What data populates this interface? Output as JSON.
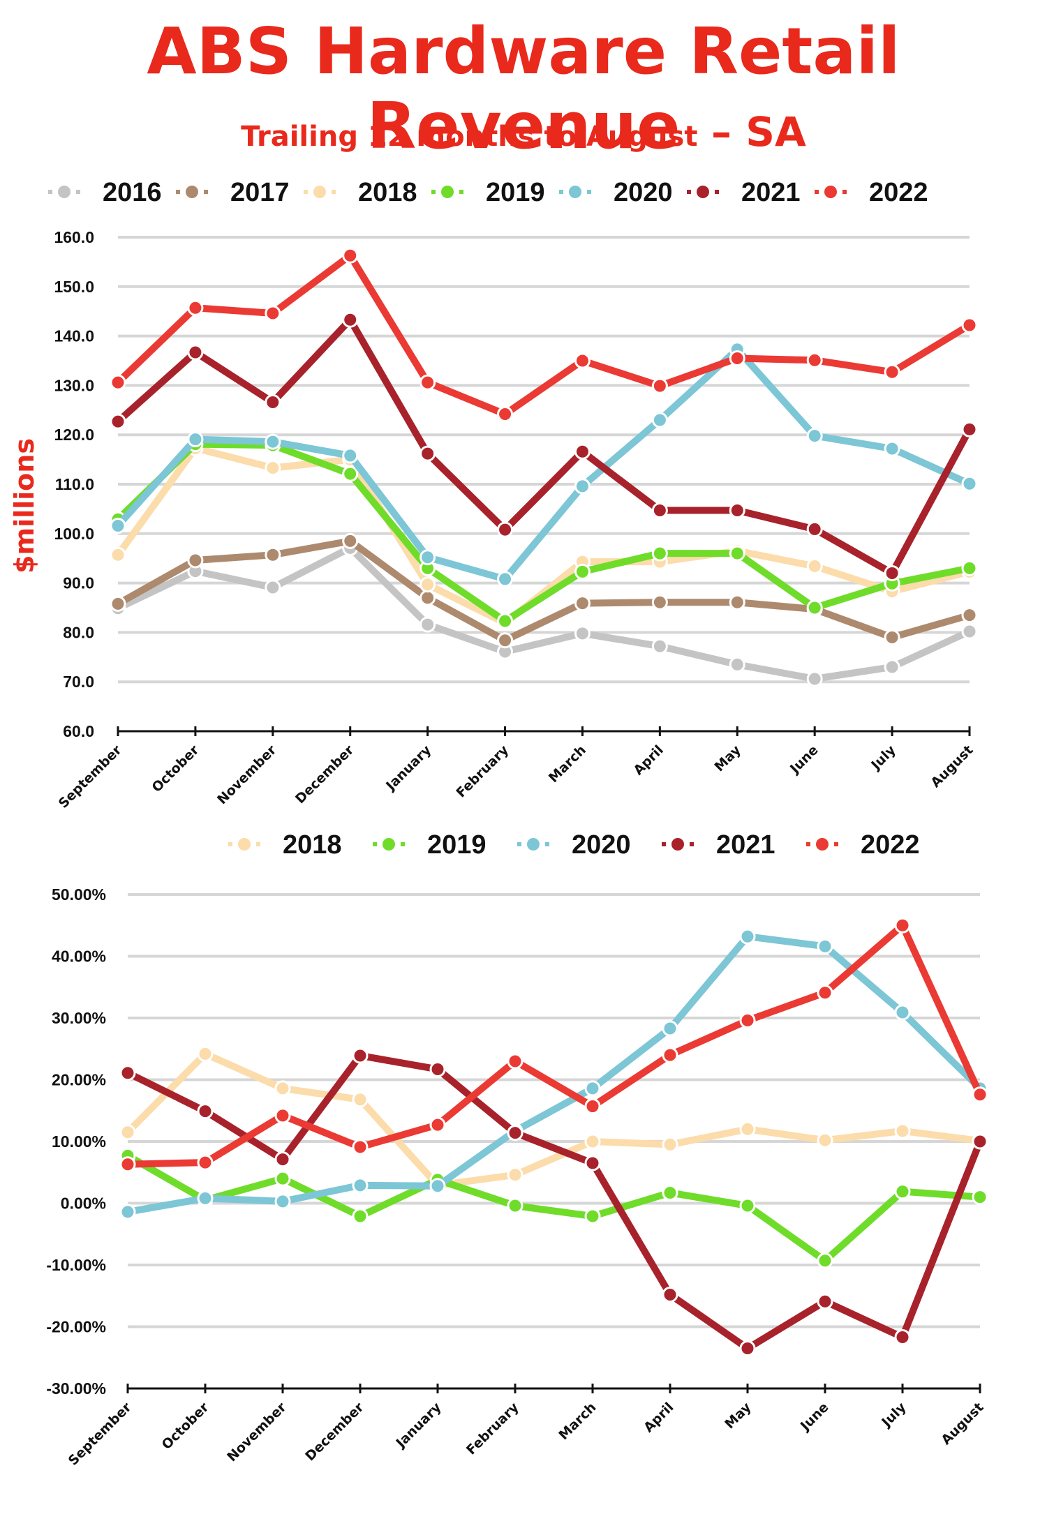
{
  "header": {
    "title": "ABS Hardware Retail Revenue",
    "subtitle": "Trailing 12 months to August",
    "subtitle_tag": "– SA"
  },
  "colors": {
    "title": "#e8291c",
    "2016": "#c4c4c4",
    "2017": "#ad8a6e",
    "2018": "#fbdcaa",
    "2019": "#6fdc2a",
    "2020": "#7cc6d6",
    "2021": "#a8222b",
    "2022": "#ea3a33"
  },
  "chart_data": [
    {
      "type": "line",
      "title": "",
      "xlabel": "",
      "ylabel": "$millions",
      "ylim": [
        60,
        160
      ],
      "yticks": [
        "60.0",
        "70.0",
        "80.0",
        "90.0",
        "100.0",
        "110.0",
        "120.0",
        "130.0",
        "140.0",
        "150.0",
        "160.0"
      ],
      "grid": true,
      "legend_position": "top",
      "categories": [
        "September",
        "October",
        "November",
        "December",
        "January",
        "February",
        "March",
        "April",
        "May",
        "June",
        "July",
        "August"
      ],
      "series": [
        {
          "name": "2016",
          "values": [
            84.9,
            92.4,
            89.1,
            97.1,
            81.6,
            76.1,
            79.8,
            77.2,
            73.5,
            70.6,
            73.0,
            80.2
          ]
        },
        {
          "name": "2017",
          "values": [
            85.8,
            94.6,
            95.7,
            98.5,
            87.0,
            78.4,
            85.9,
            86.1,
            86.1,
            84.7,
            79.0,
            83.5
          ]
        },
        {
          "name": "2018",
          "values": [
            95.7,
            117.3,
            113.3,
            115.0,
            89.7,
            81.9,
            94.3,
            94.3,
            96.5,
            93.4,
            88.3,
            92.3
          ]
        },
        {
          "name": "2019",
          "values": [
            102.9,
            118.1,
            117.9,
            112.1,
            93.0,
            82.3,
            92.3,
            96.0,
            96.0,
            85.0,
            89.9,
            93.0
          ]
        },
        {
          "name": "2020",
          "values": [
            101.6,
            119.1,
            118.6,
            115.8,
            95.2,
            90.8,
            109.6,
            123.0,
            137.3,
            119.8,
            117.2,
            110.1
          ]
        },
        {
          "name": "2021",
          "values": [
            122.7,
            136.7,
            126.6,
            143.3,
            116.2,
            100.8,
            116.6,
            104.7,
            104.7,
            100.9,
            92.0,
            121.1
          ]
        },
        {
          "name": "2022",
          "values": [
            130.6,
            145.7,
            144.6,
            156.3,
            130.6,
            124.2,
            135.0,
            129.9,
            135.5,
            135.1,
            132.7,
            142.2
          ]
        }
      ]
    },
    {
      "type": "line",
      "title": "",
      "xlabel": "",
      "ylabel": "",
      "ylim": [
        -30,
        50
      ],
      "yticks": [
        "-30.00%",
        "-20.00%",
        "-10.00%",
        "0.00%",
        "10.00%",
        "20.00%",
        "30.00%",
        "40.00%",
        "50.00%"
      ],
      "grid": true,
      "legend_position": "top",
      "categories": [
        "September",
        "October",
        "November",
        "December",
        "January",
        "February",
        "March",
        "April",
        "May",
        "June",
        "July",
        "August"
      ],
      "series": [
        {
          "name": "2018",
          "values": [
            11.5,
            24.2,
            18.6,
            16.8,
            2.9,
            4.6,
            10.0,
            9.5,
            12.0,
            10.2,
            11.7,
            10.1
          ]
        },
        {
          "name": "2019",
          "values": [
            7.7,
            0.5,
            4.0,
            -2.1,
            3.8,
            -0.4,
            -2.1,
            1.7,
            -0.4,
            -9.3,
            1.9,
            1.0
          ]
        },
        {
          "name": "2020",
          "values": [
            -1.4,
            0.8,
            0.3,
            2.9,
            2.8,
            11.7,
            18.6,
            28.3,
            43.2,
            41.6,
            30.9,
            18.6
          ]
        },
        {
          "name": "2021",
          "values": [
            21.1,
            14.9,
            7.1,
            23.9,
            21.7,
            11.4,
            6.5,
            -14.8,
            -23.5,
            -15.9,
            -21.7,
            10.0
          ]
        },
        {
          "name": "2022",
          "values": [
            6.3,
            6.6,
            14.2,
            9.1,
            12.7,
            23.0,
            15.7,
            24.0,
            29.6,
            34.1,
            45.0,
            17.6
          ]
        }
      ]
    }
  ]
}
